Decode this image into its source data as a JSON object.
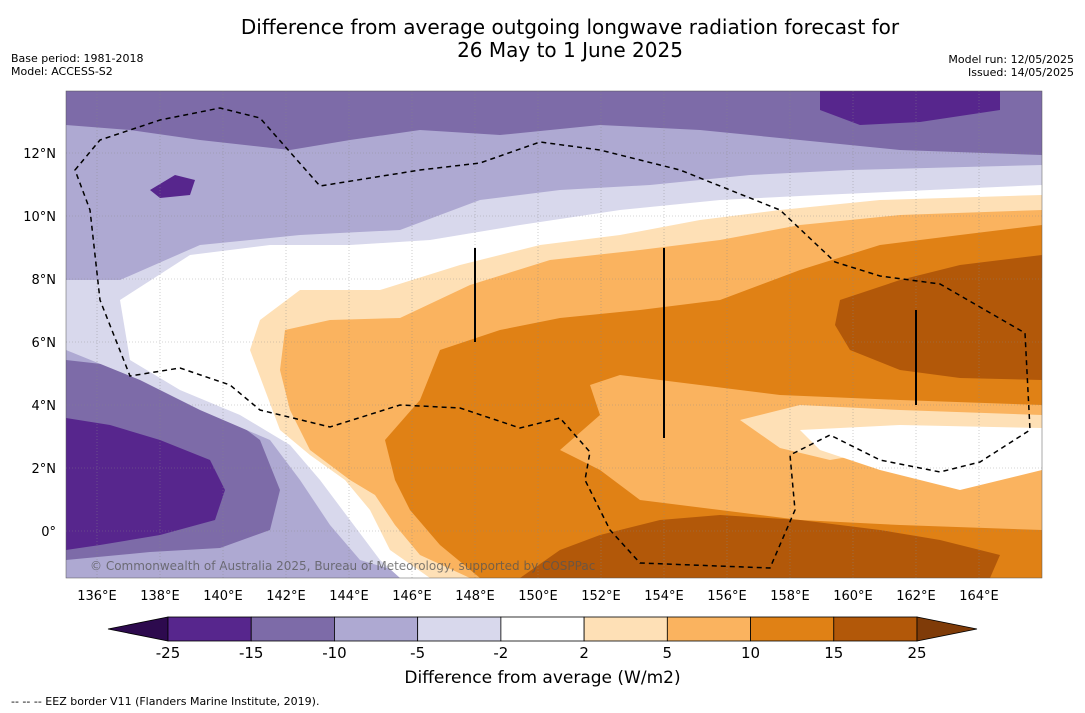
{
  "title_line1": "Difference from average outgoing longwave radiation forecast for",
  "title_line2": "26 May to 1 June 2025",
  "meta_left": [
    "Base period: 1981-2018",
    "Model: ACCESS-S2"
  ],
  "meta_right": [
    "Model run: 12/05/2025",
    "Issued: 14/05/2025"
  ],
  "lon_labels": [
    "136°E",
    "138°E",
    "140°E",
    "142°E",
    "144°E",
    "146°E",
    "148°E",
    "150°E",
    "152°E",
    "154°E",
    "156°E",
    "158°E",
    "160°E",
    "162°E",
    "164°E"
  ],
  "lat_labels": [
    "12°N",
    "10°N",
    "8°N",
    "6°N",
    "4°N",
    "2°N",
    "0°"
  ],
  "copyright": "© Commonwealth of Australia 2025, Bureau of Meteorology, supported by COSPPac",
  "colorbar": {
    "ticks": [
      "-25",
      "-15",
      "-10",
      "-5",
      "-2",
      "2",
      "5",
      "10",
      "15",
      "25"
    ],
    "colors": [
      "#2d0a4e",
      "#57268d",
      "#7d6ba8",
      "#aea9d2",
      "#d8d8ec",
      "#ffffff",
      "#fee0b6",
      "#fab35f",
      "#e08115",
      "#b25809",
      "#7f3b08"
    ],
    "title": "Difference from average (W/m2)"
  },
  "footer": "--  --  -- EEZ border V11 (Flanders Marine Institute, 2019)."
}
